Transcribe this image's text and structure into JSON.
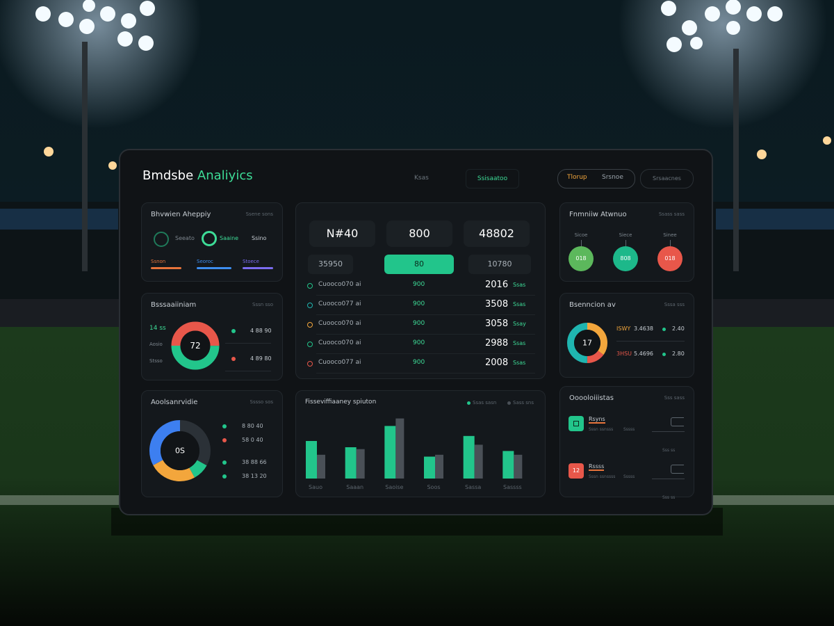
{
  "header": {
    "brand": "Bmdsbe",
    "accent": "Analiyics",
    "nav": [
      "Ksas",
      "Ssisaatoo"
    ],
    "toggle": [
      "Tlorup",
      "Srsnoe"
    ],
    "button": "Srsaacnes"
  },
  "activity": {
    "title": "Bhvwien Aheppiy",
    "note": "Ssene sons",
    "rings": [
      "Seeato",
      "Saaine",
      "Ssino"
    ],
    "bars": [
      {
        "label": "Ssnon",
        "color": "#e8743b"
      },
      {
        "label": "Seoroc",
        "color": "#3d8ef0"
      },
      {
        "label": "Stoece",
        "color": "#7b6cf0"
      }
    ]
  },
  "breakdown": {
    "title": "Bsssaaiiniam",
    "note": "Sssn sso",
    "side": [
      "14 ss",
      "Aosio",
      "Stsso"
    ],
    "legend": [
      "4 88 90",
      "4 89 80"
    ],
    "chart": {
      "type": "pie",
      "center": "72",
      "values": [
        50,
        50
      ],
      "colors": [
        "#e8574a",
        "#22c58b"
      ]
    }
  },
  "allocation": {
    "title": "Aoolsanrvidie",
    "note": "Sssso sos",
    "legend": [
      "8 80 40",
      "58 0 40",
      "38 88 66",
      "38 13 20"
    ],
    "chart": {
      "type": "pie",
      "center": "0S",
      "values": [
        33,
        9,
        25,
        33
      ],
      "colors": [
        "#2b3137",
        "#22c58b",
        "#f3a63c",
        "#3d7ff0"
      ]
    }
  },
  "overview": {
    "stats": [
      "N#40",
      "800",
      "48802"
    ],
    "filters": [
      "35950",
      "80",
      "10780"
    ],
    "rows": [
      [
        "Cuooco070 ai",
        "900",
        "2016",
        "Ssas"
      ],
      [
        "Cuooco077 ai",
        "900",
        "3508",
        "Ssas"
      ],
      [
        "Cuooco070 ai",
        "900",
        "3058",
        "Ssay"
      ],
      [
        "Cuooco070 ai",
        "900",
        "2988",
        "Ssas"
      ],
      [
        "Cuooco077 ai",
        "900",
        "2008",
        "Ssas"
      ]
    ],
    "row_colors": [
      "#22c58b",
      "#1fb5b0",
      "#f3a63c",
      "#22c58b",
      "#e8574a"
    ]
  },
  "performance": {
    "chart": {
      "type": "bar",
      "title": "Fisseviffiaaney spiuton",
      "categories": [
        "Sauo",
        "Saaan",
        "Saoise",
        "Soos",
        "Sassa",
        "Sassss"
      ],
      "series": [
        {
          "name": "Ssas sasn",
          "color": "#22c58b",
          "values": [
            60,
            50,
            84,
            35,
            68,
            44
          ]
        },
        {
          "name": "Sass sns",
          "color": "#4a5057",
          "values": [
            38,
            47,
            96,
            38,
            54,
            38
          ]
        }
      ],
      "ylim": [
        0,
        100
      ]
    }
  },
  "status": {
    "title": "Fnmniiw Atwnuo",
    "note": "Ssass sass",
    "items": [
      {
        "label": "Sicoe",
        "value": "018",
        "color": "#5cb85c"
      },
      {
        "label": "Siece",
        "value": "808",
        "color": "#1db88a"
      },
      {
        "label": "Sinee",
        "value": "018",
        "color": "#e8574a"
      }
    ]
  },
  "session": {
    "title": "Bsenncion av",
    "note": "Sssa sss",
    "legend": [
      [
        "ISWY",
        "3.4638",
        "2.40"
      ],
      [
        "3HSU",
        "5.4696",
        "2.80"
      ]
    ],
    "chart": {
      "type": "pie",
      "center": "17",
      "values": [
        35,
        15,
        50
      ],
      "colors": [
        "#f3a63c",
        "#e8574a",
        "#1fb5b0"
      ]
    }
  },
  "notifications": {
    "title": "Ooooloiiistas",
    "note": "Sss sass",
    "items": [
      {
        "title": "Rsyns",
        "sub": "Sssn ssnsss",
        "tag": "Sssss",
        "meta": "Sss ss",
        "icon_color": "#22c58b"
      },
      {
        "title": "Rssss",
        "sub": "Sssn ssnssss",
        "tag": "Sssss",
        "meta": "Sss ss",
        "icon_color": "#e8574a",
        "icon": "12"
      }
    ]
  }
}
